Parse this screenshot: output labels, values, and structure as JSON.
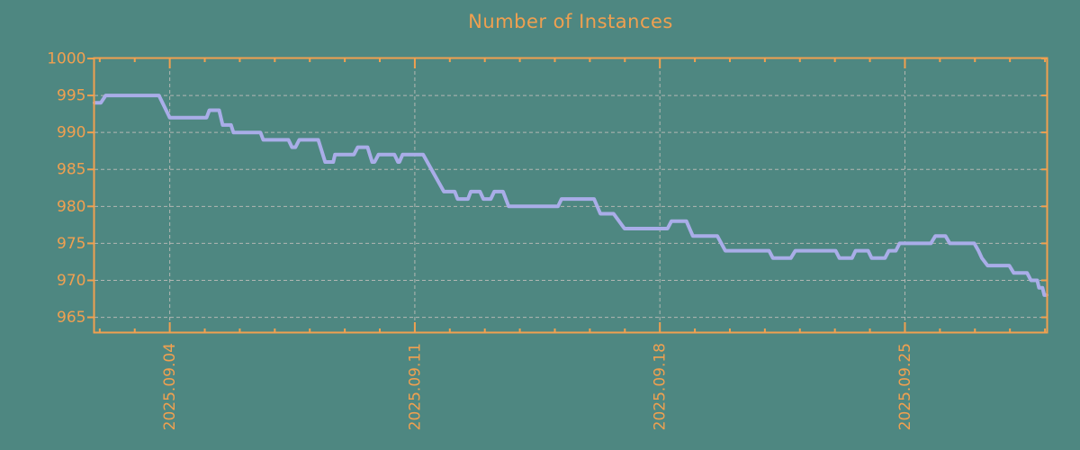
{
  "chart_data": {
    "type": "line",
    "title": "Number of Instances",
    "grid": "dashed",
    "legend": "none",
    "colors": {
      "background": "#4E8781",
      "axis": "#F0A050",
      "tick_label": "#F0A050",
      "title": "#F0A050",
      "grid": "#B3B7B3",
      "line": "#A9ADE8"
    },
    "x_axis": {
      "unit": "date",
      "min": 1.85,
      "max": 29.05,
      "major_ticks": [
        {
          "value": 4,
          "label": "2025.09.04"
        },
        {
          "value": 11,
          "label": "2025.09.11"
        },
        {
          "value": 18,
          "label": "2025.09.18"
        },
        {
          "value": 25,
          "label": "2025.09.25"
        }
      ],
      "minor_ticks": [
        2,
        3,
        5,
        6,
        7,
        8,
        9,
        10,
        12,
        13,
        14,
        15,
        16,
        17,
        19,
        20,
        21,
        22,
        23,
        24,
        26,
        27,
        28,
        29
      ]
    },
    "y_axis": {
      "min": 963,
      "max": 1000,
      "ticks": [
        {
          "value": 1000,
          "label": "1000"
        },
        {
          "value": 995,
          "label": "995"
        },
        {
          "value": 990,
          "label": "990"
        },
        {
          "value": 985,
          "label": "985"
        },
        {
          "value": 980,
          "label": "980"
        },
        {
          "value": 975,
          "label": "975"
        },
        {
          "value": 970,
          "label": "970"
        },
        {
          "value": 965,
          "label": "965"
        }
      ]
    },
    "series": [
      {
        "name": "instances",
        "points": [
          [
            1.85,
            994
          ],
          [
            2.03,
            994
          ],
          [
            2.17,
            995
          ],
          [
            3.69,
            995
          ],
          [
            4.0,
            992
          ],
          [
            5.05,
            992
          ],
          [
            5.13,
            993
          ],
          [
            5.41,
            993
          ],
          [
            5.51,
            991
          ],
          [
            5.75,
            991
          ],
          [
            5.82,
            990
          ],
          [
            6.59,
            990
          ],
          [
            6.67,
            989
          ],
          [
            7.39,
            989
          ],
          [
            7.49,
            988
          ],
          [
            7.59,
            988
          ],
          [
            7.7,
            989
          ],
          [
            8.24,
            989
          ],
          [
            8.44,
            986
          ],
          [
            8.67,
            986
          ],
          [
            8.72,
            987
          ],
          [
            9.26,
            987
          ],
          [
            9.37,
            988
          ],
          [
            9.65,
            988
          ],
          [
            9.78,
            986
          ],
          [
            9.85,
            986
          ],
          [
            9.96,
            987
          ],
          [
            10.42,
            987
          ],
          [
            10.52,
            986
          ],
          [
            10.56,
            986
          ],
          [
            10.65,
            987
          ],
          [
            11.24,
            987
          ],
          [
            11.83,
            982
          ],
          [
            12.14,
            982
          ],
          [
            12.22,
            981
          ],
          [
            12.52,
            981
          ],
          [
            12.6,
            982
          ],
          [
            12.86,
            982
          ],
          [
            12.96,
            981
          ],
          [
            13.17,
            981
          ],
          [
            13.27,
            982
          ],
          [
            13.52,
            982
          ],
          [
            13.68,
            980
          ],
          [
            15.09,
            980
          ],
          [
            15.19,
            981
          ],
          [
            16.12,
            981
          ],
          [
            16.3,
            979
          ],
          [
            16.68,
            979
          ],
          [
            16.99,
            977
          ],
          [
            18.22,
            977
          ],
          [
            18.33,
            978
          ],
          [
            18.76,
            978
          ],
          [
            18.94,
            976
          ],
          [
            19.64,
            976
          ],
          [
            19.87,
            974
          ],
          [
            21.12,
            974
          ],
          [
            21.23,
            973
          ],
          [
            21.74,
            973
          ],
          [
            21.87,
            974
          ],
          [
            23.02,
            974
          ],
          [
            23.13,
            973
          ],
          [
            23.49,
            973
          ],
          [
            23.59,
            974
          ],
          [
            23.95,
            974
          ],
          [
            24.05,
            973
          ],
          [
            24.43,
            973
          ],
          [
            24.54,
            974
          ],
          [
            24.74,
            974
          ],
          [
            24.85,
            975
          ],
          [
            25.74,
            975
          ],
          [
            25.87,
            976
          ],
          [
            26.16,
            976
          ],
          [
            26.28,
            975
          ],
          [
            26.98,
            975
          ],
          [
            27.1,
            974
          ],
          [
            27.2,
            973
          ],
          [
            27.36,
            972
          ],
          [
            27.98,
            972
          ],
          [
            28.11,
            971
          ],
          [
            28.49,
            971
          ],
          [
            28.6,
            970
          ],
          [
            28.78,
            970
          ],
          [
            28.83,
            969
          ],
          [
            28.93,
            969
          ],
          [
            28.98,
            968
          ],
          [
            29.05,
            968
          ]
        ]
      }
    ]
  }
}
